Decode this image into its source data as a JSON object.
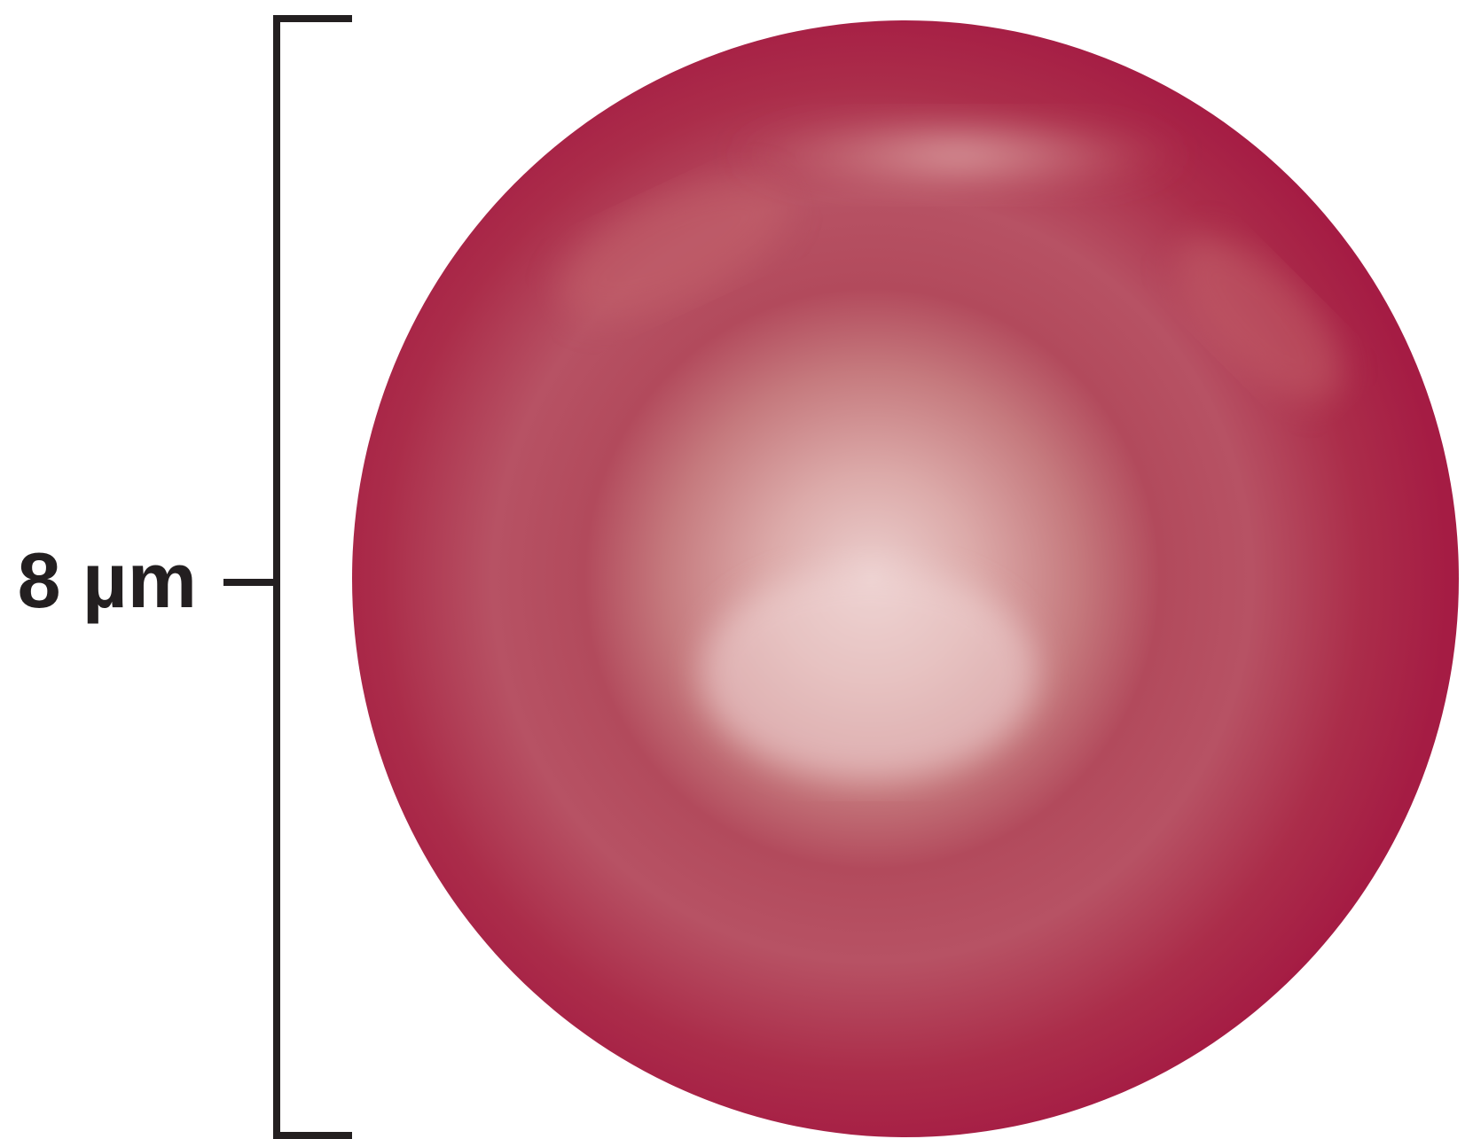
{
  "scale_bar": {
    "label": "8 µm"
  }
}
